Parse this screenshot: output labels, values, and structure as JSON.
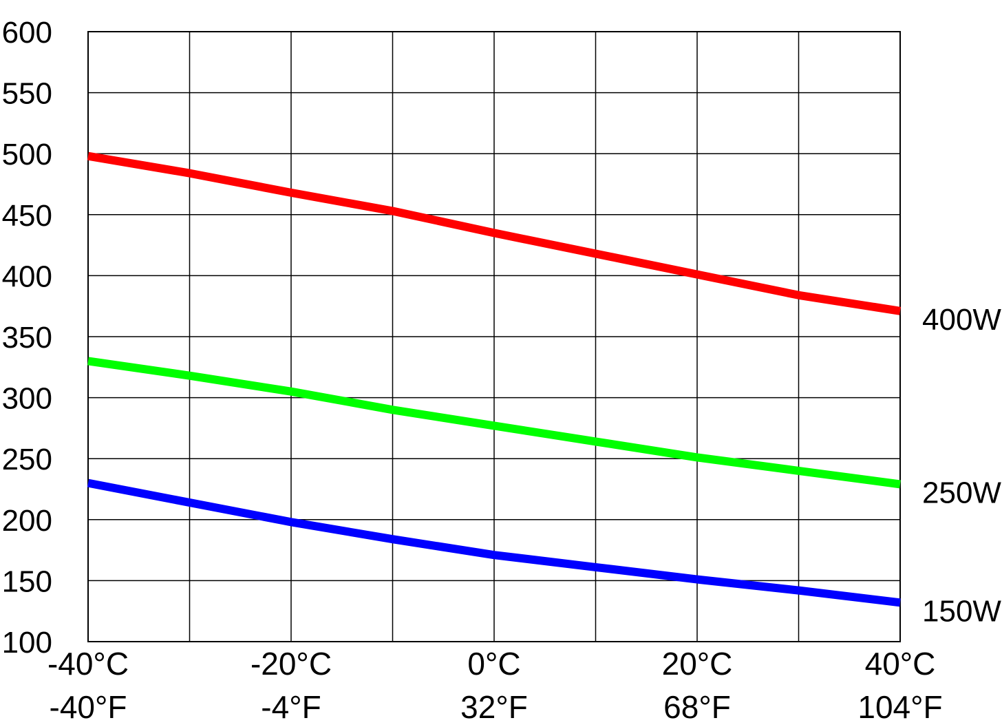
{
  "chart_data": {
    "type": "line",
    "ylim": [
      100,
      600
    ],
    "y_ticks": [
      100,
      150,
      200,
      250,
      300,
      350,
      400,
      450,
      500,
      550,
      600
    ],
    "y_tick_labels": [
      "100",
      "150",
      "200",
      "250",
      "300",
      "350",
      "400",
      "450",
      "500",
      "550",
      "600"
    ],
    "x_ticks": [
      -40,
      -20,
      0,
      20,
      40
    ],
    "x_tick_labels_c": [
      "-40°C",
      "-20°C",
      "0°C",
      "20°C",
      "40°C"
    ],
    "x_tick_labels_f": [
      "-40°F",
      "-4°F",
      "32°F",
      "68°F",
      "104°F"
    ],
    "xlim": [
      -40,
      40
    ],
    "grid": true,
    "series": [
      {
        "name": "400W",
        "color": "#ff0000",
        "x": [
          -40,
          -30,
          -20,
          -10,
          0,
          10,
          20,
          30,
          40
        ],
        "y": [
          498,
          484,
          468,
          453,
          435,
          418,
          401,
          384,
          371
        ]
      },
      {
        "name": "250W",
        "color": "#00ff00",
        "x": [
          -40,
          -30,
          -20,
          -10,
          0,
          10,
          20,
          30,
          40
        ],
        "y": [
          330,
          318,
          305,
          290,
          277,
          264,
          251,
          240,
          229
        ]
      },
      {
        "name": "150W",
        "color": "#0000ff",
        "x": [
          -40,
          -30,
          -20,
          -10,
          0,
          10,
          20,
          30,
          40
        ],
        "y": [
          230,
          214,
          198,
          184,
          171,
          161,
          151,
          142,
          132
        ]
      }
    ]
  }
}
